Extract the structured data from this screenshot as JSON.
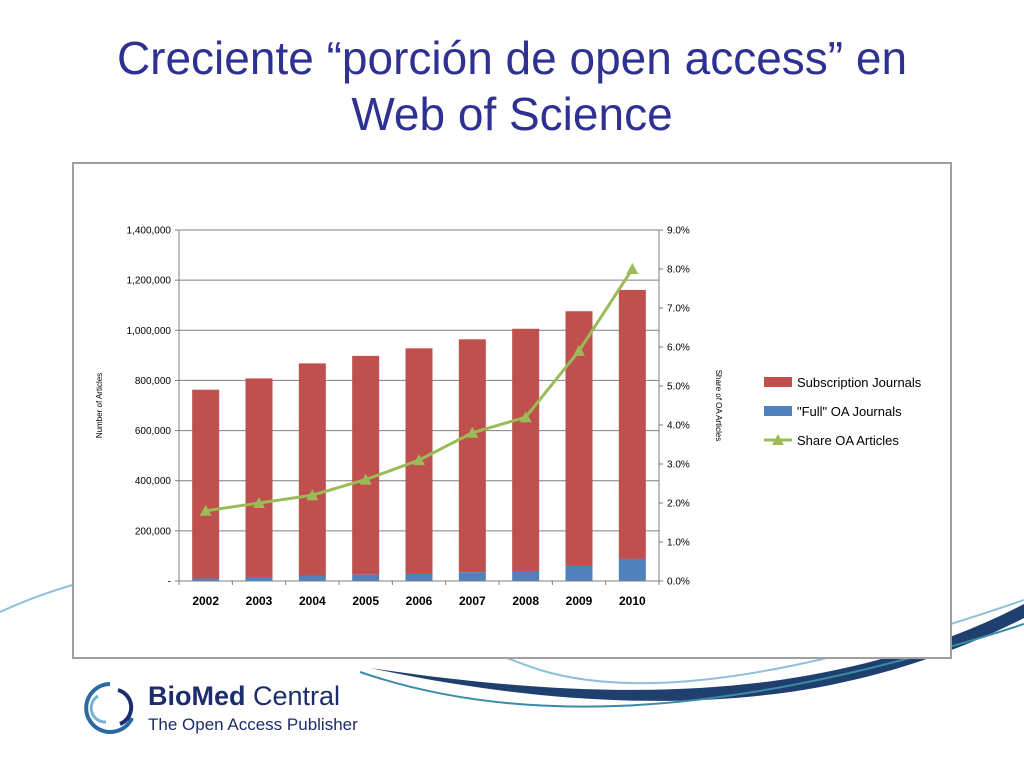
{
  "slide": {
    "title_line1": "Creciente “porción de open access” en",
    "title_line2": "Web of Science"
  },
  "logo": {
    "name_bold": "BioMed",
    "name_light": "Central",
    "tagline": "The Open Access Publisher"
  },
  "colors": {
    "title": "#2e3192",
    "subscription": "#c0504d",
    "oa": "#4f81bd",
    "share": "#9bbb59",
    "swoosh_dark": "#1f3f6e",
    "swoosh_light": "#6fa8c9"
  },
  "chart_data": {
    "type": "bar",
    "stacked": true,
    "title": "",
    "categories": [
      "2002",
      "2003",
      "2004",
      "2005",
      "2006",
      "2007",
      "2008",
      "2009",
      "2010"
    ],
    "series": [
      {
        "name": "Subscription Journals",
        "axis": "left",
        "kind": "bar",
        "values": [
          753000,
          792000,
          846000,
          873000,
          900000,
          929000,
          966000,
          1016000,
          1073000
        ]
      },
      {
        "name": "\"Full\" OA Journals",
        "axis": "left",
        "kind": "bar",
        "values": [
          10000,
          16000,
          22000,
          25000,
          28000,
          35000,
          40000,
          60000,
          88000
        ]
      },
      {
        "name": "Share OA Articles",
        "axis": "right",
        "kind": "line",
        "values": [
          1.8,
          2.0,
          2.2,
          2.6,
          3.1,
          3.8,
          4.2,
          5.9,
          8.0
        ]
      }
    ],
    "ylim_left": [
      0,
      1400000
    ],
    "ylim_right": [
      0,
      9.0
    ],
    "left_tick_labels": [
      "-",
      "200,000",
      "400,000",
      "600,000",
      "800,000",
      "1,000,000",
      "1,200,000",
      "1,400,000"
    ],
    "right_tick_labels": [
      "0.0%",
      "1.0%",
      "2.0%",
      "3.0%",
      "4.0%",
      "5.0%",
      "6.0%",
      "7.0%",
      "8.0%",
      "9.0%"
    ],
    "ylabel_left": "Number of Articles",
    "ylabel_right": "Share of OA Articles",
    "legend_position": "right",
    "grid": true
  }
}
